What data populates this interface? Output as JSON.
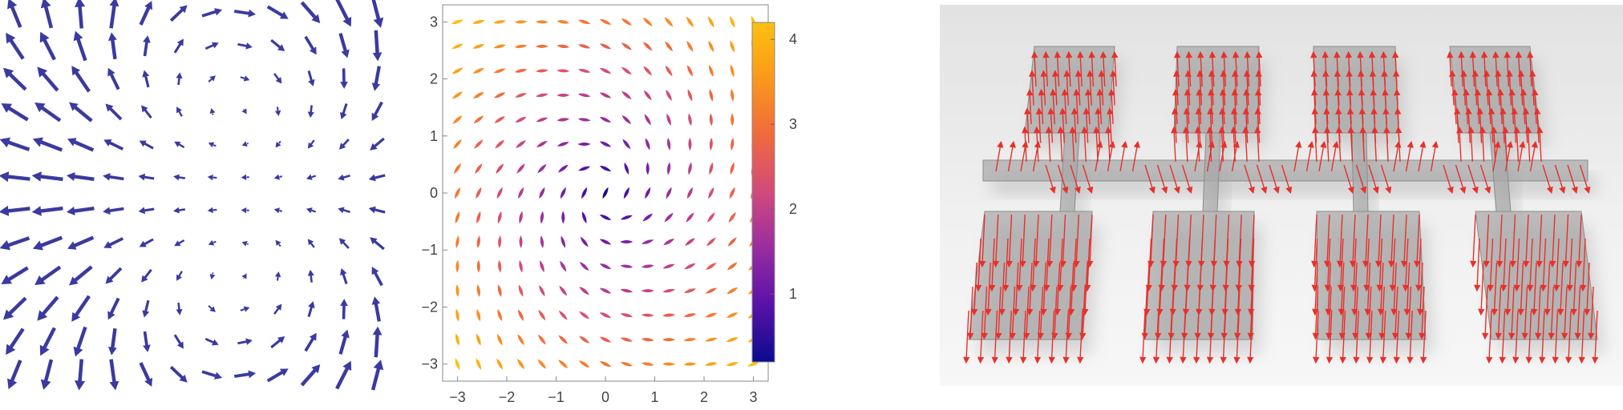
{
  "colors": {
    "arrow_blue": "#3a3aa0",
    "arrow_red": "#e8302a",
    "frame": "#888888",
    "colormap": [
      "#0b0a90",
      "#5a12a8",
      "#9a2ea0",
      "#d14a7c",
      "#f06a3c",
      "#fb9a1a",
      "#fcc010"
    ]
  },
  "chart_data": [
    {
      "type": "vector-field",
      "glyph": "arrow",
      "grid": {
        "nx": 12,
        "ny": 12
      },
      "color": "#3a3aa0",
      "axes": false
    },
    {
      "type": "vector-field",
      "glyph": "teardrop",
      "field": "swirl",
      "xlim": [
        -3.3,
        3.3
      ],
      "ylim": [
        -3.3,
        3.3
      ],
      "x_ticks": [
        "−3",
        "−2",
        "−1",
        "0",
        "1",
        "2",
        "3"
      ],
      "x_tick_values": [
        -3,
        -2,
        -1,
        0,
        1,
        2,
        3
      ],
      "y_ticks": [
        "−3",
        "−2",
        "−1",
        "0",
        "1",
        "2",
        "3"
      ],
      "y_tick_values": [
        -3,
        -2,
        -1,
        0,
        1,
        2,
        3
      ],
      "colorbar": {
        "range": [
          0.2,
          4.2
        ],
        "ticks": [
          "1",
          "2",
          "3",
          "4"
        ],
        "tick_values": [
          1,
          2,
          3,
          4
        ]
      }
    },
    {
      "type": "3d-vector-field",
      "description_shapes": "grey translucent plates with red arrows",
      "plates": 9,
      "color": "#e8302a"
    }
  ]
}
